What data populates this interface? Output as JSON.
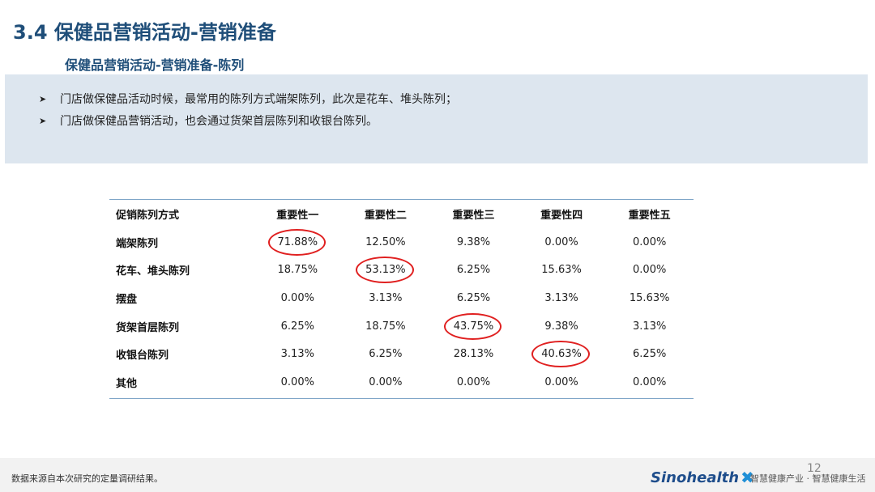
{
  "title": "3.4 保健品营销活动-营销准备",
  "subtitle": "保健品营销活动-营销准备-陈列",
  "bullets": [
    "门店做保健品活动时候，最常用的陈列方式端架陈列，此次是花车、堆头陈列；",
    "门店做保健品营销活动，也会通过货架首层陈列和收银台陈列。"
  ],
  "table": {
    "headers": [
      "促销陈列方式",
      "重要性一",
      "重要性二",
      "重要性三",
      "重要性四",
      "重要性五"
    ],
    "rows": [
      [
        "端架陈列",
        "71.88%",
        "12.50%",
        "9.38%",
        "0.00%",
        "0.00%"
      ],
      [
        "花车、堆头陈列",
        "18.75%",
        "53.13%",
        "6.25%",
        "15.63%",
        "0.00%"
      ],
      [
        "摆盘",
        "0.00%",
        "3.13%",
        "6.25%",
        "3.13%",
        "15.63%"
      ],
      [
        "货架首层陈列",
        "6.25%",
        "18.75%",
        "43.75%",
        "9.38%",
        "3.13%"
      ],
      [
        "收银台陈列",
        "3.13%",
        "6.25%",
        "28.13%",
        "40.63%",
        "6.25%"
      ],
      [
        "其他",
        "0.00%",
        "0.00%",
        "0.00%",
        "0.00%",
        "0.00%"
      ]
    ],
    "highlighted_cells": [
      "71.88%",
      "53.13%",
      "43.75%",
      "40.63%"
    ]
  },
  "footer": {
    "source": "数据来源自本次研究的定量调研结果。",
    "page_number": "12",
    "logo_text": "Sinohealth",
    "tagline": "智慧健康产业 · 智慧健康生活"
  },
  "colors": {
    "title": "#1f4e79",
    "panel_bg": "#dde6ef",
    "table_rule": "#7fa6c8",
    "highlight_circle": "#e02020",
    "logo": "#1f4e8c"
  },
  "icons": {
    "bullet": "arrow-right-icon",
    "logo_mark": "sinohealth-x-mark"
  }
}
